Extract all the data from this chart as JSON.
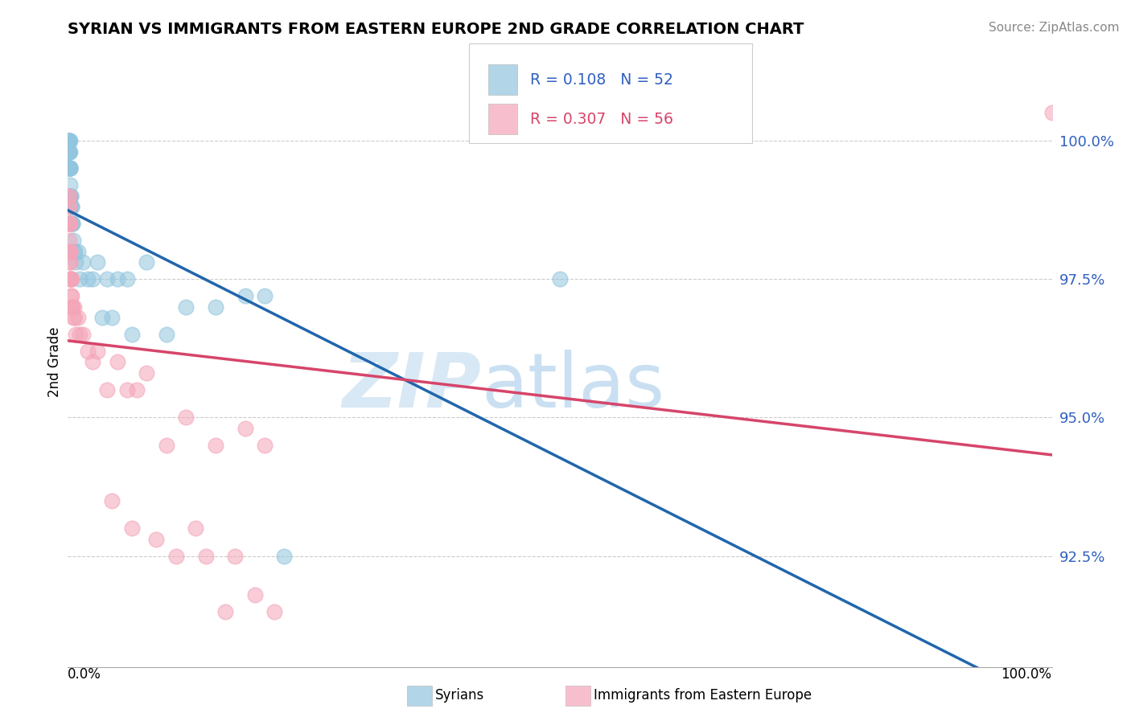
{
  "title": "SYRIAN VS IMMIGRANTS FROM EASTERN EUROPE 2ND GRADE CORRELATION CHART",
  "source": "Source: ZipAtlas.com",
  "ylabel": "2nd Grade",
  "ytick_positions": [
    92.5,
    95.0,
    97.5,
    100.0
  ],
  "ytick_labels": [
    "92.5%",
    "95.0%",
    "97.5%",
    "100.0%"
  ],
  "xlim": [
    0.0,
    100.0
  ],
  "ylim": [
    90.5,
    101.5
  ],
  "legend_blue_r": "R = 0.108",
  "legend_blue_n": "N = 52",
  "legend_pink_r": "R = 0.307",
  "legend_pink_n": "N = 56",
  "blue_color": "#92c5de",
  "pink_color": "#f4a5b8",
  "blue_line_color": "#2166ac",
  "pink_line_color": "#d6456a",
  "watermark_zip": "ZIP",
  "watermark_atlas": "atlas",
  "legend_label_blue": "Syrians",
  "legend_label_pink": "Immigrants from Eastern Europe",
  "blue_scatter_x": [
    0.05,
    0.08,
    0.08,
    0.1,
    0.1,
    0.12,
    0.12,
    0.12,
    0.15,
    0.15,
    0.15,
    0.18,
    0.18,
    0.2,
    0.2,
    0.2,
    0.22,
    0.22,
    0.25,
    0.25,
    0.28,
    0.3,
    0.32,
    0.35,
    0.38,
    0.4,
    0.45,
    0.5,
    0.55,
    0.6,
    0.7,
    0.8,
    1.0,
    1.2,
    1.5,
    2.0,
    2.5,
    3.0,
    4.0,
    5.0,
    6.0,
    8.0,
    10.0,
    12.0,
    15.0,
    18.0,
    20.0,
    3.5,
    4.5,
    6.5,
    22.0,
    50.0
  ],
  "blue_scatter_y": [
    100.0,
    100.0,
    99.8,
    100.0,
    99.5,
    100.0,
    99.8,
    99.5,
    100.0,
    99.8,
    99.5,
    99.8,
    99.5,
    100.0,
    99.5,
    99.2,
    99.5,
    99.0,
    99.5,
    99.0,
    99.0,
    98.8,
    99.0,
    98.8,
    98.8,
    98.5,
    98.5,
    98.5,
    98.2,
    98.0,
    98.0,
    97.8,
    98.0,
    97.5,
    97.8,
    97.5,
    97.5,
    97.8,
    97.5,
    97.5,
    97.5,
    97.8,
    96.5,
    97.0,
    97.0,
    97.2,
    97.2,
    96.8,
    96.8,
    96.5,
    92.5,
    97.5
  ],
  "pink_scatter_x": [
    0.05,
    0.08,
    0.1,
    0.1,
    0.12,
    0.12,
    0.15,
    0.15,
    0.15,
    0.18,
    0.18,
    0.2,
    0.2,
    0.22,
    0.22,
    0.25,
    0.25,
    0.28,
    0.3,
    0.32,
    0.35,
    0.38,
    0.4,
    0.45,
    0.5,
    0.55,
    0.6,
    0.7,
    0.8,
    1.0,
    1.2,
    1.5,
    2.0,
    2.5,
    3.0,
    4.0,
    5.0,
    6.0,
    7.0,
    8.0,
    10.0,
    12.0,
    15.0,
    18.0,
    20.0,
    4.5,
    6.5,
    9.0,
    11.0,
    14.0,
    17.0,
    21.0,
    16.0,
    19.0,
    13.0,
    100.0
  ],
  "pink_scatter_y": [
    99.0,
    98.8,
    99.0,
    98.5,
    98.8,
    98.5,
    98.5,
    98.2,
    98.0,
    98.5,
    98.0,
    98.0,
    97.8,
    98.0,
    97.5,
    97.8,
    97.5,
    97.5,
    97.5,
    97.2,
    97.5,
    97.2,
    97.0,
    97.0,
    97.0,
    96.8,
    97.0,
    96.8,
    96.5,
    96.8,
    96.5,
    96.5,
    96.2,
    96.0,
    96.2,
    95.5,
    96.0,
    95.5,
    95.5,
    95.8,
    94.5,
    95.0,
    94.5,
    94.8,
    94.5,
    93.5,
    93.0,
    92.8,
    92.5,
    92.5,
    92.5,
    91.5,
    91.5,
    91.8,
    93.0,
    100.5
  ]
}
